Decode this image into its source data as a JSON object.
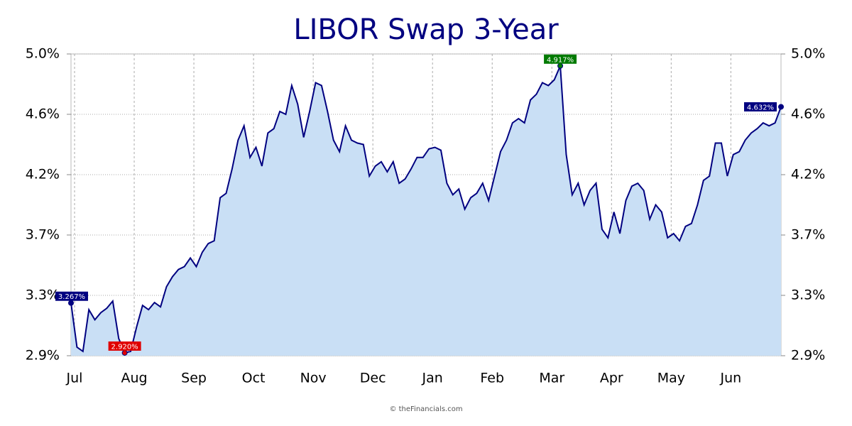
{
  "chart_data": {
    "type": "area",
    "title": "LIBOR Swap 3-Year",
    "footer": "© theFinancials.com",
    "categories": [
      "Jul",
      null,
      null,
      null,
      null,
      null,
      null,
      null,
      null,
      null,
      "Aug",
      null,
      null,
      null,
      null,
      null,
      null,
      null,
      null,
      null,
      "Sep",
      null,
      null,
      null,
      null,
      null,
      null,
      null,
      null,
      null,
      "Oct",
      null,
      null,
      null,
      null,
      null,
      null,
      null,
      null,
      null,
      "Nov",
      null,
      null,
      null,
      null,
      null,
      null,
      null,
      null,
      null,
      "Dec",
      null,
      null,
      null,
      null,
      null,
      null,
      null,
      null,
      null,
      "Jan",
      null,
      null,
      null,
      null,
      null,
      null,
      null,
      null,
      null,
      "Feb",
      null,
      null,
      null,
      null,
      null,
      null,
      null,
      null,
      null,
      "Mar",
      null,
      null,
      null,
      null,
      null,
      null,
      null,
      null,
      null,
      "Apr",
      null,
      null,
      null,
      null,
      null,
      null,
      null,
      null,
      null,
      "May",
      null,
      null,
      null,
      null,
      null,
      null,
      null,
      null,
      null,
      "Jun",
      null,
      null,
      null,
      null,
      null,
      null,
      null,
      null,
      null
    ],
    "values": [
      3.267,
      2.96,
      2.93,
      3.22,
      3.15,
      3.2,
      3.23,
      3.28,
      3.02,
      2.92,
      2.93,
      3.1,
      3.25,
      3.22,
      3.27,
      3.24,
      3.38,
      3.45,
      3.5,
      3.52,
      3.58,
      3.52,
      3.62,
      3.68,
      3.7,
      4.0,
      4.03,
      4.2,
      4.4,
      4.5,
      4.28,
      4.35,
      4.22,
      4.45,
      4.48,
      4.6,
      4.58,
      4.78,
      4.65,
      4.42,
      4.6,
      4.8,
      4.78,
      4.6,
      4.4,
      4.32,
      4.5,
      4.4,
      4.38,
      4.37,
      4.15,
      4.22,
      4.25,
      4.18,
      4.25,
      4.1,
      4.13,
      4.2,
      4.28,
      4.28,
      4.34,
      4.35,
      4.33,
      4.1,
      4.02,
      4.06,
      3.92,
      4.0,
      4.03,
      4.1,
      3.98,
      4.15,
      4.32,
      4.4,
      4.52,
      4.55,
      4.52,
      4.68,
      4.72,
      4.8,
      4.78,
      4.82,
      4.917,
      4.3,
      4.02,
      4.1,
      3.95,
      4.05,
      4.1,
      3.78,
      3.72,
      3.9,
      3.75,
      3.98,
      4.08,
      4.1,
      4.05,
      3.85,
      3.95,
      3.9,
      3.72,
      3.75,
      3.7,
      3.8,
      3.82,
      3.95,
      4.12,
      4.15,
      4.38,
      4.38,
      4.15,
      4.3,
      4.32,
      4.4,
      4.45,
      4.48,
      4.52,
      4.5,
      4.52,
      4.632
    ],
    "value_labels": {
      "0": "3.267%",
      "9": "2.920%",
      "82": "4.917%",
      "119": "4.632%"
    },
    "value_label_colors": {
      "0": "#000080",
      "9": "#e00000",
      "82": "#007a00",
      "119": "#000080"
    },
    "color": "#000080",
    "fill": "#c9dff5",
    "ylim": [
      2.9,
      5.0
    ],
    "yticks": [
      {
        "value": 2.9,
        "label": "2.9%"
      },
      {
        "value": 3.32,
        "label": "3.3%"
      },
      {
        "value": 3.74,
        "label": "3.7%"
      },
      {
        "value": 4.16,
        "label": "4.2%"
      },
      {
        "value": 4.58,
        "label": "4.6%"
      },
      {
        "value": 5.0,
        "label": "5.0%"
      }
    ],
    "grid": true
  }
}
